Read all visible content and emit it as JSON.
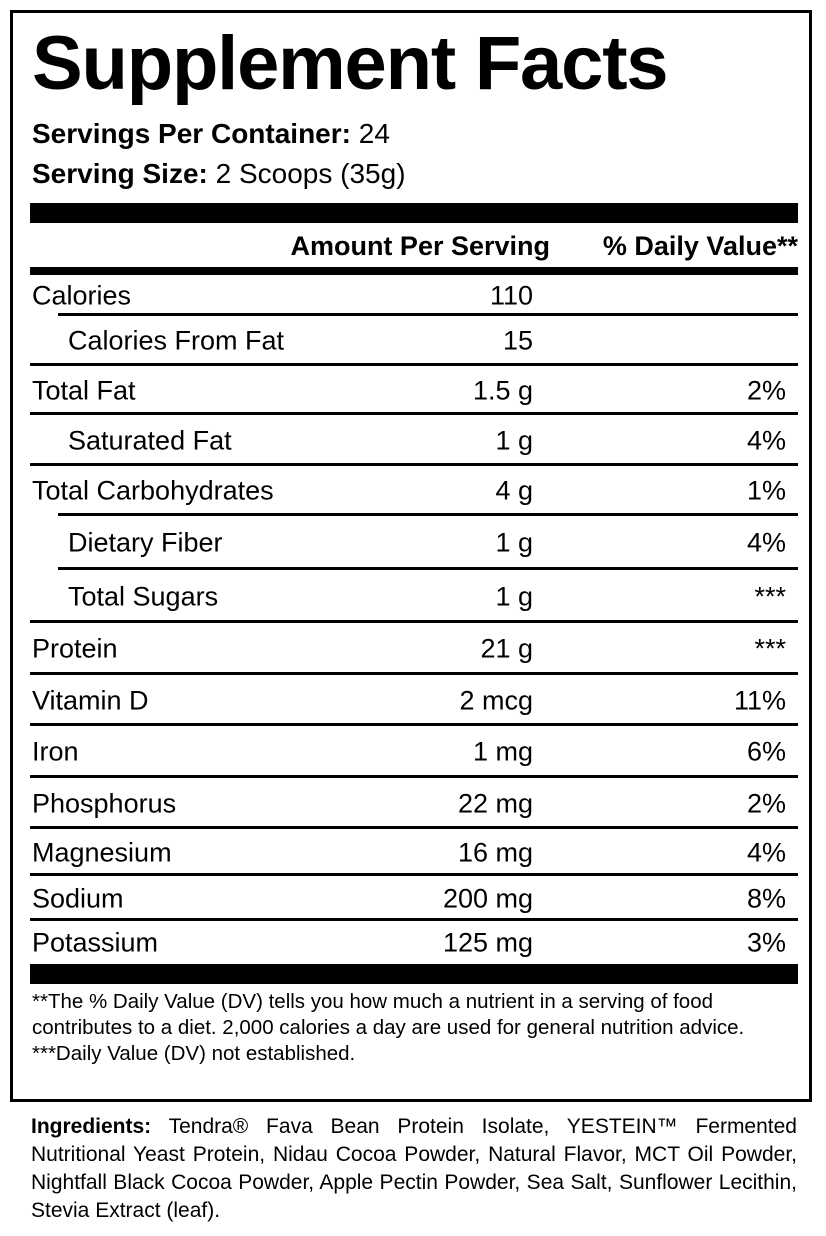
{
  "title": "Supplement Facts",
  "servings_per_container": {
    "label": "Servings Per Container:",
    "value": "24"
  },
  "serving_size": {
    "label": "Serving Size:",
    "value": "2 Scoops (35g)"
  },
  "header": {
    "amount": "Amount Per Serving",
    "dv": "% Daily Value**"
  },
  "rows": [
    {
      "label": "Calories",
      "amount": "110",
      "dv": "",
      "sub": false
    },
    {
      "label": "Calories From Fat",
      "amount": "15",
      "dv": "",
      "sub": true
    },
    {
      "label": "Total Fat",
      "amount": "1.5 g",
      "dv": "2%",
      "sub": false
    },
    {
      "label": "Saturated Fat",
      "amount": "1 g",
      "dv": "4%",
      "sub": true
    },
    {
      "label": "Total Carbohydrates",
      "amount": "4 g",
      "dv": "1%",
      "sub": false
    },
    {
      "label": "Dietary Fiber",
      "amount": "1 g",
      "dv": "4%",
      "sub": true
    },
    {
      "label": "Total Sugars",
      "amount": "1 g",
      "dv": "***",
      "sub": true
    },
    {
      "label": "Protein",
      "amount": "21 g",
      "dv": "***",
      "sub": false
    },
    {
      "label": "Vitamin D",
      "amount": "2 mcg",
      "dv": "11%",
      "sub": false
    },
    {
      "label": "Iron",
      "amount": "1 mg",
      "dv": "6%",
      "sub": false
    },
    {
      "label": "Phosphorus",
      "amount": "22 mg",
      "dv": "2%",
      "sub": false
    },
    {
      "label": "Magnesium",
      "amount": "16 mg",
      "dv": "4%",
      "sub": false
    },
    {
      "label": "Sodium",
      "amount": "200 mg",
      "dv": "8%",
      "sub": false
    },
    {
      "label": "Potassium",
      "amount": "125 mg",
      "dv": "3%",
      "sub": false
    }
  ],
  "footnotes": [
    "**The % Daily Value (DV) tells you how much a nutrient in a serving of food contributes to a diet. 2,000 calories a day are used for general nutrition advice.",
    "***Daily Value (DV) not established."
  ],
  "ingredients": {
    "label": "Ingredients:",
    "text": "Tendra® Fava Bean Protein Isolate, YESTEIN™ Fermented Nutritional Yeast Protein, Nidau Cocoa Powder, Natural Flavor, MCT Oil Powder, Nightfall Black Cocoa Powder, Apple Pectin Powder, Sea Salt, Sunflower Lecithin, Stevia Extract (leaf)."
  }
}
